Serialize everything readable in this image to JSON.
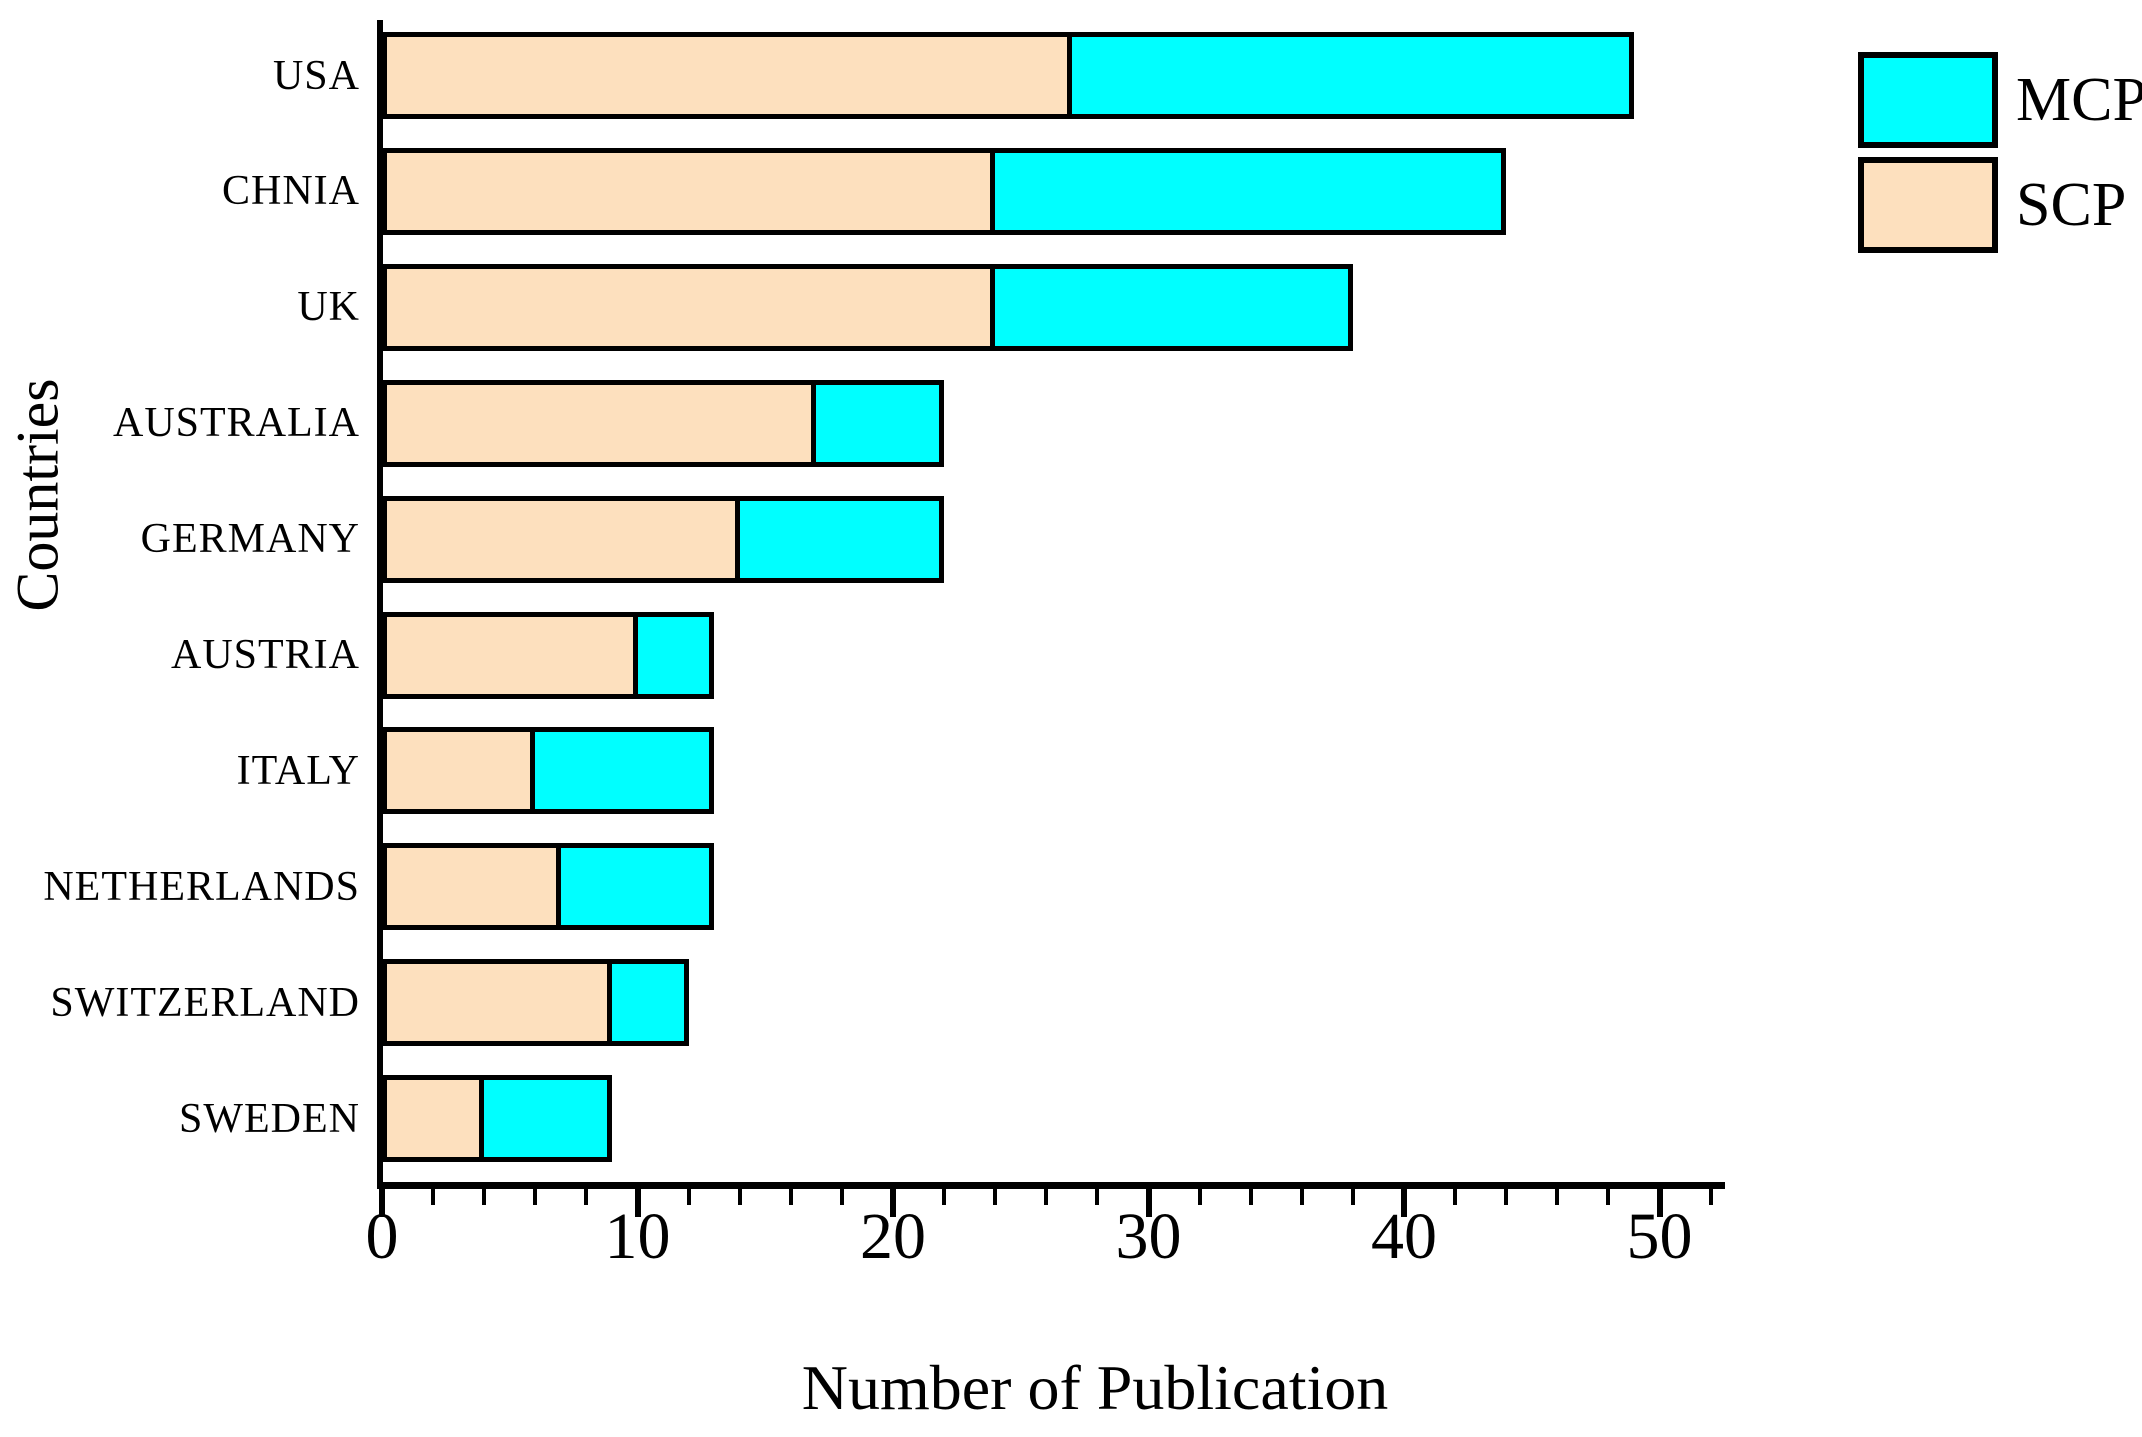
{
  "figure": {
    "x_axis_title": "Number of Publication",
    "y_axis_title": "Countries"
  },
  "legend": {
    "position": "top-right",
    "entries": [
      {
        "label": "MCP",
        "color": "#00ffff"
      },
      {
        "label": "SCP",
        "color": "#fde0be"
      }
    ]
  },
  "chart_data": {
    "type": "bar",
    "orientation": "horizontal",
    "stacked": true,
    "title": "",
    "xlabel": "Number of Publication",
    "ylabel": "Countries",
    "categories": [
      "USA",
      "CHNIA",
      "UK",
      "AUSTRALIA",
      "GERMANY",
      "AUSTRIA",
      "ITALY",
      "NETHERLANDS",
      "SWITZERLAND",
      "SWEDEN"
    ],
    "series": [
      {
        "name": "SCP",
        "color": "#fde0be",
        "values": [
          27,
          24,
          24,
          17,
          14,
          10,
          6,
          7,
          9,
          4
        ]
      },
      {
        "name": "MCP",
        "color": "#00ffff",
        "values": [
          22,
          20,
          14,
          5,
          8,
          3,
          7,
          6,
          3,
          5
        ]
      }
    ],
    "totals": [
      49,
      44,
      38,
      22,
      22,
      13,
      13,
      13,
      12,
      9
    ],
    "xlim": [
      0,
      52
    ],
    "x_ticks": [
      0,
      10,
      20,
      30,
      40,
      50
    ],
    "x_minor_step": 2,
    "grid": false,
    "bar_edge_color": "#000000",
    "legend_position": "top-right"
  }
}
